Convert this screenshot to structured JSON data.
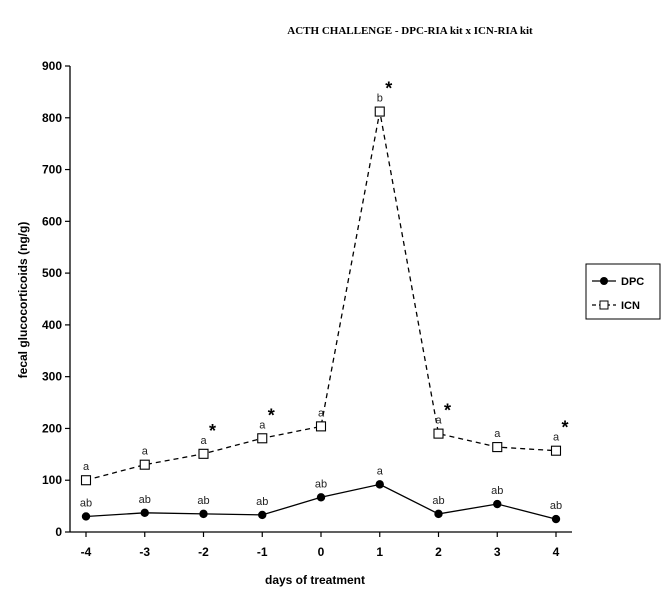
{
  "chart_data": {
    "type": "line",
    "title": "ACTH CHALLENGE  - DPC-RIA  kit x ICN-RIA  kit",
    "xlabel": "days of treatment",
    "ylabel": "fecal glucocorticoids (ng/g)",
    "x": [
      -4,
      -3,
      -2,
      -1,
      0,
      1,
      2,
      3,
      4
    ],
    "x_tick_labels": [
      "-4",
      "-3",
      "-2",
      "-1",
      "0",
      "1",
      "2",
      "3",
      "4"
    ],
    "ylim": [
      0,
      900
    ],
    "y_ticks": [
      0,
      100,
      200,
      300,
      400,
      500,
      600,
      700,
      800,
      900
    ],
    "y_tick_labels": [
      "0",
      "100",
      "200",
      "300",
      "400",
      "500",
      "600",
      "700",
      "800",
      "900"
    ],
    "grid": false,
    "legend_position": "right",
    "series": [
      {
        "name": "DPC",
        "values": [
          30,
          37,
          35,
          33,
          67,
          92,
          35,
          54,
          25
        ],
        "line_style": "solid",
        "marker": "filled-circle",
        "color": "#000000",
        "annotations": [
          "ab",
          "ab",
          "ab",
          "ab",
          "ab",
          "a",
          "ab",
          "ab",
          "ab"
        ]
      },
      {
        "name": "ICN",
        "values": [
          100,
          130,
          151,
          181,
          204,
          812,
          190,
          164,
          157
        ],
        "line_style": "dashed",
        "marker": "open-square",
        "color": "#000000",
        "annotations": [
          "a",
          "a",
          "a",
          "a",
          "a",
          "b",
          "a",
          "a",
          "a"
        ]
      }
    ],
    "significance_marks": {
      "symbol": "*",
      "x": [
        -2,
        -1,
        1,
        2,
        4
      ]
    }
  }
}
